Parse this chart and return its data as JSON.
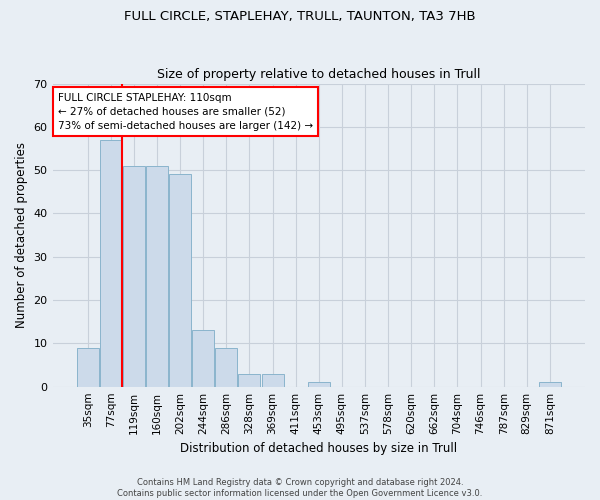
{
  "title1": "FULL CIRCLE, STAPLEHAY, TRULL, TAUNTON, TA3 7HB",
  "title2": "Size of property relative to detached houses in Trull",
  "xlabel": "Distribution of detached houses by size in Trull",
  "ylabel": "Number of detached properties",
  "categories": [
    "35sqm",
    "77sqm",
    "119sqm",
    "160sqm",
    "202sqm",
    "244sqm",
    "286sqm",
    "328sqm",
    "369sqm",
    "411sqm",
    "453sqm",
    "495sqm",
    "537sqm",
    "578sqm",
    "620sqm",
    "662sqm",
    "704sqm",
    "746sqm",
    "787sqm",
    "829sqm",
    "871sqm"
  ],
  "values": [
    9,
    57,
    51,
    51,
    49,
    13,
    9,
    3,
    3,
    0,
    1,
    0,
    0,
    0,
    0,
    0,
    0,
    0,
    0,
    0,
    1
  ],
  "bar_color": "#ccdaea",
  "bar_edge_color": "#8ab4cc",
  "annotation_text": "FULL CIRCLE STAPLEHAY: 110sqm\n← 27% of detached houses are smaller (52)\n73% of semi-detached houses are larger (142) →",
  "annotation_box_facecolor": "white",
  "annotation_box_edgecolor": "red",
  "vline_color": "red",
  "ylim": [
    0,
    70
  ],
  "yticks": [
    0,
    10,
    20,
    30,
    40,
    50,
    60,
    70
  ],
  "grid_color": "#c8d0da",
  "footer_line1": "Contains HM Land Registry data © Crown copyright and database right 2024.",
  "footer_line2": "Contains public sector information licensed under the Open Government Licence v3.0.",
  "bg_color": "#e8eef4",
  "plot_bg_color": "#e8eef4",
  "title_fontsize": 9.5,
  "tick_fontsize": 7.5,
  "ylabel_fontsize": 8.5,
  "xlabel_fontsize": 8.5
}
